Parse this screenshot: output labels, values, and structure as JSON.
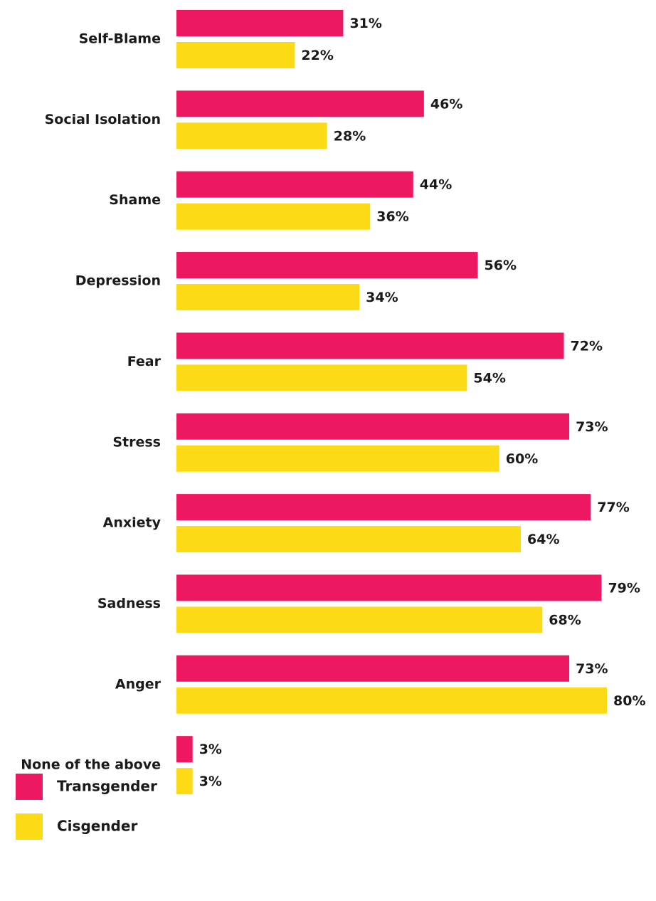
{
  "chart_data": {
    "type": "bar",
    "orientation": "horizontal",
    "categories": [
      "Self-Blame",
      "Social Isolation",
      "Shame",
      "Depression",
      "Fear",
      "Stress",
      "Anxiety",
      "Sadness",
      "Anger",
      "None of the above"
    ],
    "series": [
      {
        "name": "Transgender",
        "color": "#ee1762",
        "values": [
          31,
          46,
          44,
          56,
          72,
          73,
          77,
          79,
          73,
          3
        ],
        "value_labels": [
          "31%",
          "46%",
          "44%",
          "56%",
          "72%",
          "73%",
          "77%",
          "79%",
          "73%",
          "3%"
        ]
      },
      {
        "name": "Cisgender",
        "color": "#fddc17",
        "values": [
          22,
          28,
          36,
          34,
          54,
          60,
          64,
          68,
          80,
          3
        ],
        "value_labels": [
          "22%",
          "28%",
          "36%",
          "34%",
          "54%",
          "60%",
          "64%",
          "68%",
          "80%",
          "3%"
        ]
      }
    ]
  }
}
